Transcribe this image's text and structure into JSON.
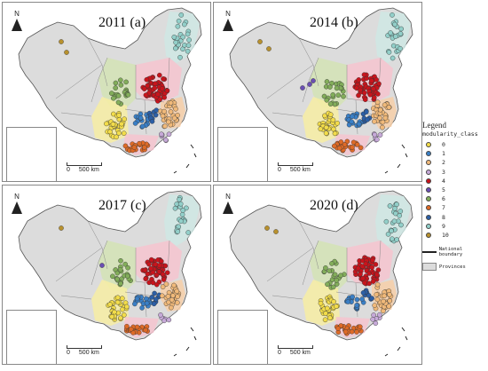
{
  "figure": {
    "panels": [
      {
        "year": "2011",
        "letter": "(a)"
      },
      {
        "year": "2014",
        "letter": "(b)"
      },
      {
        "year": "2017",
        "letter": "(c)"
      },
      {
        "year": "2020",
        "letter": "(d)"
      }
    ],
    "north_label": "N",
    "scale": {
      "zero": "0",
      "distance": "500 km"
    }
  },
  "legend": {
    "title": "Legend",
    "field": "modularity_class",
    "classes": [
      {
        "label": "0",
        "color": "#f2dc4a"
      },
      {
        "label": "1",
        "color": "#3a7fc6"
      },
      {
        "label": "2",
        "color": "#f0b97a"
      },
      {
        "label": "3",
        "color": "#c6a9d8"
      },
      {
        "label": "4",
        "color": "#c8141c"
      },
      {
        "label": "5",
        "color": "#6a4fb3"
      },
      {
        "label": "6",
        "color": "#82ad5a"
      },
      {
        "label": "7",
        "color": "#de6a26"
      },
      {
        "label": "8",
        "color": "#2c5fa6"
      },
      {
        "label": "9",
        "color": "#92cfc9"
      },
      {
        "label": "10",
        "color": "#b8912e"
      }
    ],
    "boundary_label": "National boundary",
    "province_label": "Provinces"
  },
  "colors": {
    "land": "#dcdcdc",
    "region_pink": "#f6c4cf",
    "region_teal": "#cfe8e4",
    "region_yellow": "#f7eda3",
    "region_green": "#d4e3b5",
    "region_orange": "#f7cfa8"
  }
}
